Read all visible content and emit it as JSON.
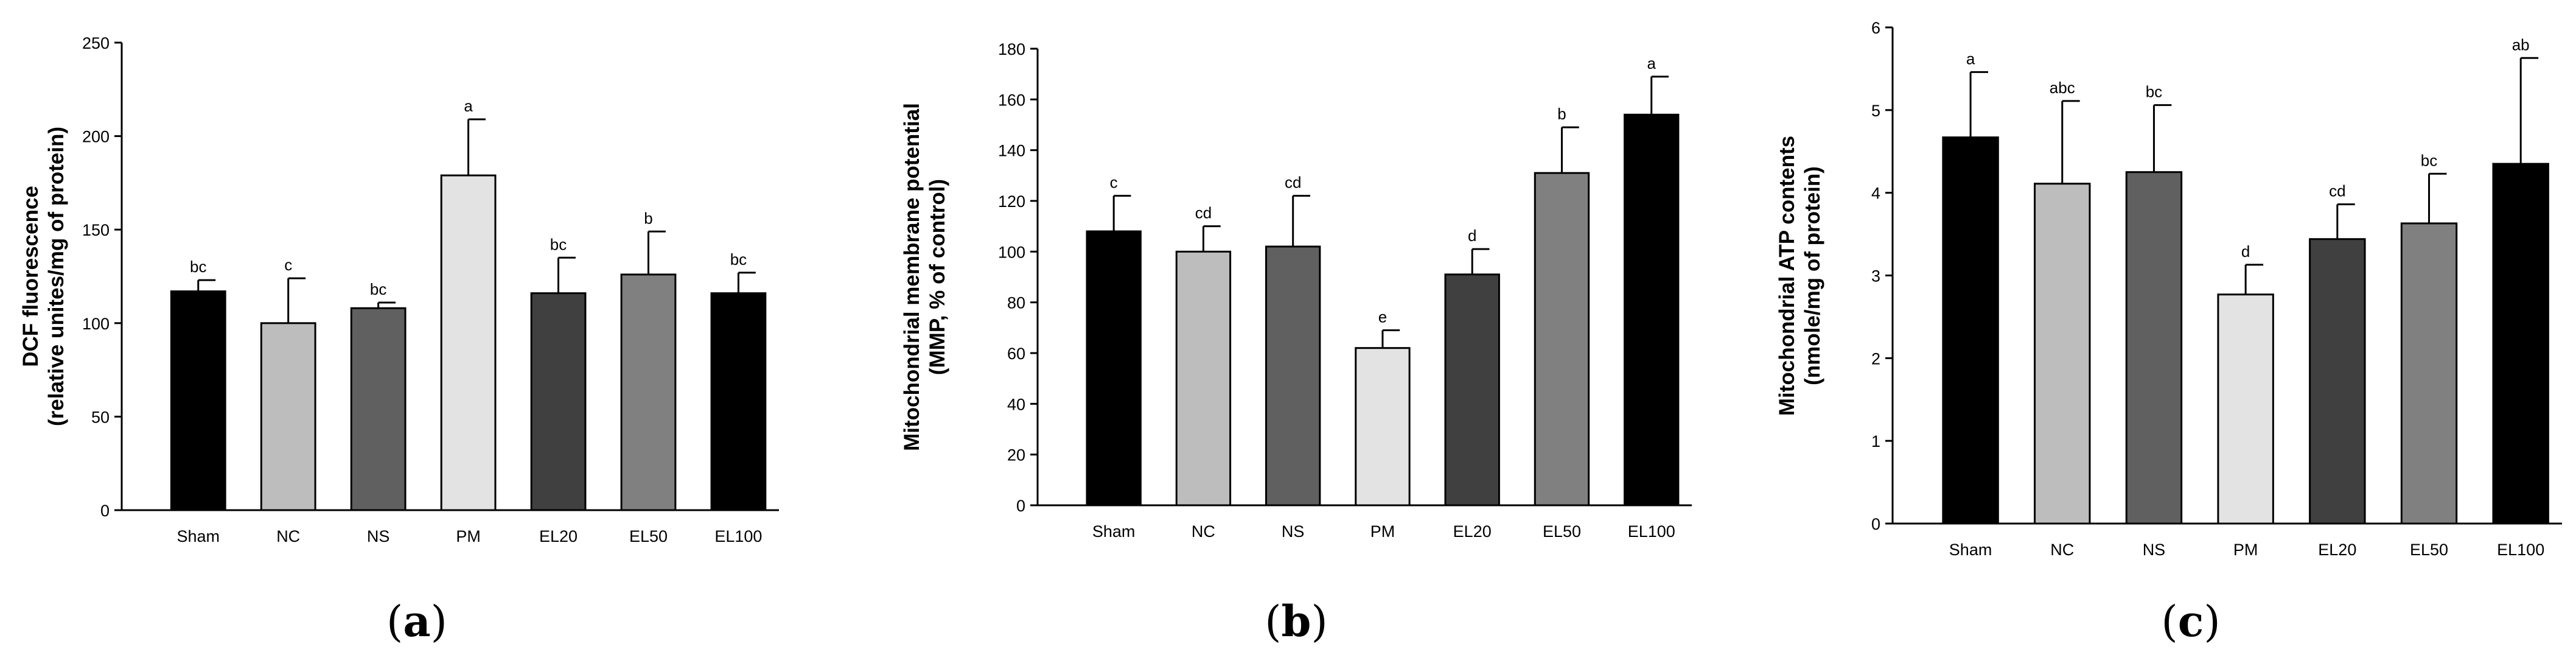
{
  "chart_data": [
    {
      "type": "bar",
      "panel_label": "(a)",
      "title": "",
      "xlabel": "",
      "ylabel_lines": [
        "DCF fluorescence",
        "(relative unites/mg of protein)"
      ],
      "ylim": [
        0,
        250
      ],
      "yticks": [
        0,
        50,
        100,
        150,
        200,
        250
      ],
      "categories": [
        "Sham",
        "NC",
        "NS",
        "PM",
        "EL20",
        "EL50",
        "EL100"
      ],
      "values": [
        117,
        100,
        108,
        179,
        116,
        126,
        116
      ],
      "errors": [
        6,
        24,
        3,
        30,
        19,
        23,
        11
      ],
      "significance": [
        "bc",
        "c",
        "bc",
        "a",
        "bc",
        "b",
        "bc"
      ],
      "bar_colors": [
        "#000000",
        "#bdbdbd",
        "#606060",
        "#e3e3e3",
        "#404040",
        "#808080",
        "#000000"
      ],
      "grid": false
    },
    {
      "type": "bar",
      "panel_label": "(b)",
      "title": "",
      "xlabel": "",
      "ylabel_lines": [
        "Mitochondrial membrane potential",
        "(MMP, % of control)"
      ],
      "ylim": [
        0,
        180
      ],
      "yticks": [
        0,
        20,
        40,
        60,
        80,
        100,
        120,
        140,
        160,
        180
      ],
      "categories": [
        "Sham",
        "NC",
        "NS",
        "PM",
        "EL20",
        "EL50",
        "EL100"
      ],
      "values": [
        108,
        100,
        102,
        62,
        91,
        131,
        154
      ],
      "errors": [
        14,
        10,
        20,
        7,
        10,
        18,
        15
      ],
      "significance": [
        "c",
        "cd",
        "cd",
        "e",
        "d",
        "b",
        "a"
      ],
      "bar_colors": [
        "#000000",
        "#bdbdbd",
        "#606060",
        "#e3e3e3",
        "#404040",
        "#808080",
        "#000000"
      ],
      "grid": false
    },
    {
      "type": "bar",
      "panel_label": "(c)",
      "title": "",
      "xlabel": "",
      "ylabel_lines": [
        "Mitochondrial ATP contents",
        "(nmole/mg of protein)"
      ],
      "ylim": [
        0,
        6
      ],
      "yticks": [
        0,
        1,
        2,
        3,
        4,
        5,
        6
      ],
      "categories": [
        "Sham",
        "NC",
        "NS",
        "PM",
        "EL20",
        "EL50",
        "EL100"
      ],
      "values": [
        4.67,
        4.11,
        4.25,
        2.77,
        3.44,
        3.63,
        4.35
      ],
      "errors": [
        0.79,
        1.0,
        0.81,
        0.36,
        0.42,
        0.6,
        1.28
      ],
      "significance": [
        "a",
        "abc",
        "bc",
        "d",
        "cd",
        "bc",
        "ab"
      ],
      "bar_colors": [
        "#000000",
        "#bdbdbd",
        "#606060",
        "#e3e3e3",
        "#404040",
        "#808080",
        "#000000"
      ],
      "grid": false
    }
  ]
}
